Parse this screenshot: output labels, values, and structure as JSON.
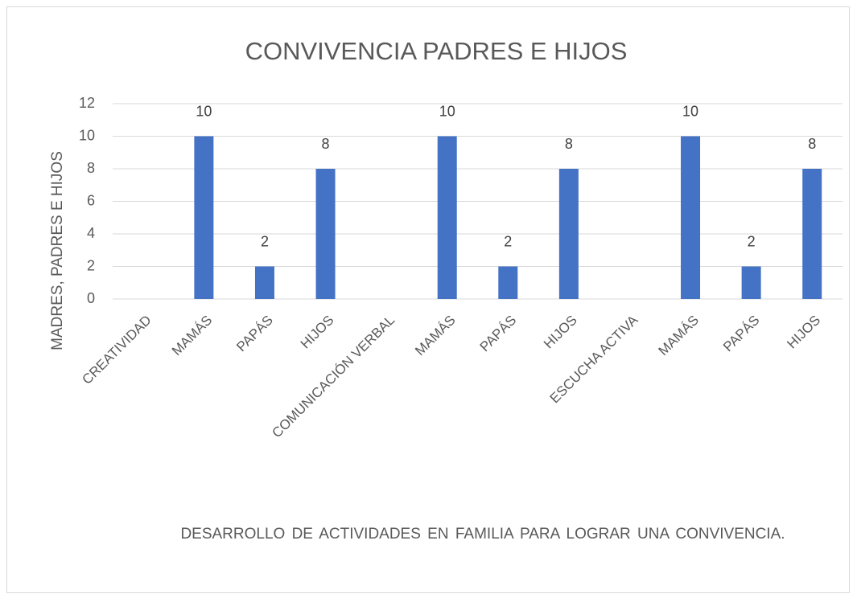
{
  "chart_data": {
    "type": "bar",
    "title": "CONVIVENCIA PADRES E HIJOS",
    "x_label": "DESARROLLO DE ACTIVIDADES EN FAMILIA PARA LOGRAR UNA CONVIVENCIA.",
    "y_label": "MADRES,  PADRES E HIJOS",
    "categories": [
      "CREATIVIDAD",
      "MAMÁS",
      "PAPÁS",
      "HIJOS",
      "COMUNICACIÓN VERBAL",
      "MAMÁS",
      "PAPÁS",
      "HIJOS",
      "ESCUCHA ACTIVA",
      "MAMÁS",
      "PAPÁS",
      "HIJOS"
    ],
    "values": [
      null,
      10,
      2,
      8,
      null,
      10,
      2,
      8,
      null,
      10,
      2,
      8
    ],
    "color": "#4472c4",
    "ylim": [
      0,
      12
    ],
    "yticks": [
      0,
      2,
      4,
      6,
      8,
      10,
      12
    ],
    "grid": true
  }
}
